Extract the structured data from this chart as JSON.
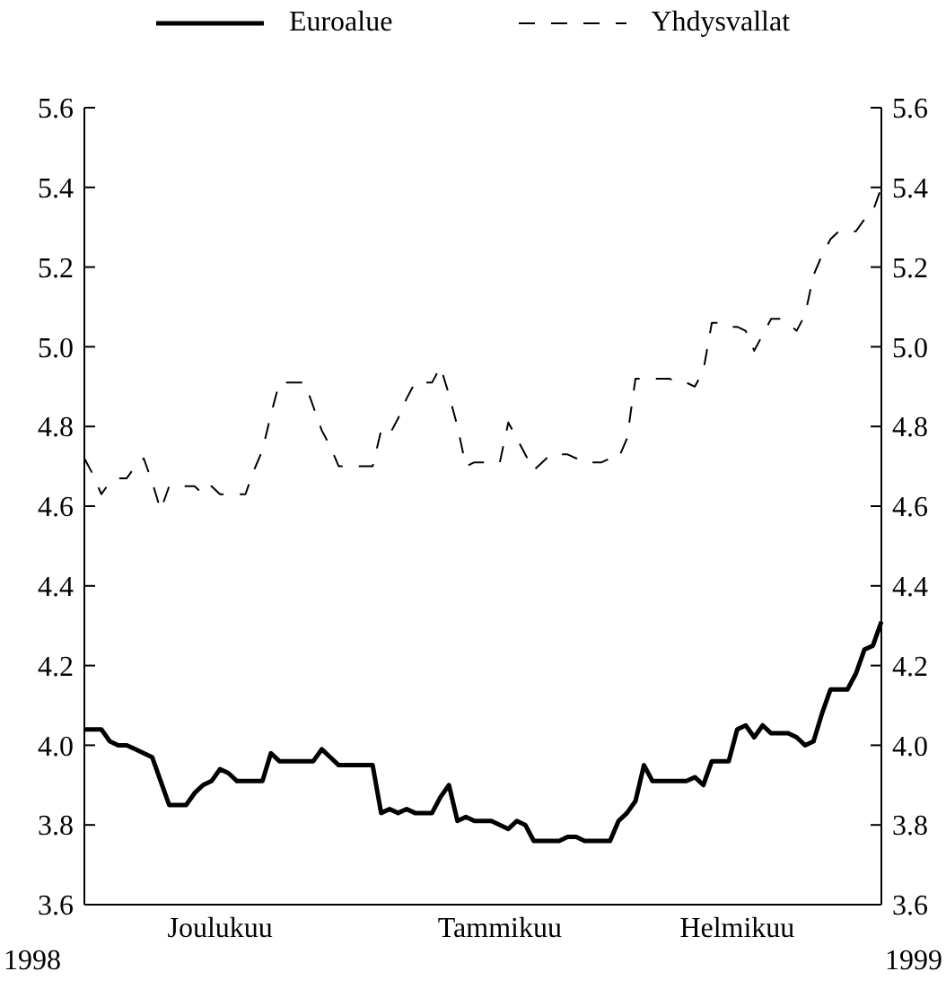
{
  "chart_data": {
    "type": "line",
    "legend": "top",
    "annotations": [
      "1998",
      "1999"
    ],
    "categories": [
      null,
      null,
      null,
      null,
      null,
      null,
      null,
      null,
      null,
      null,
      null,
      null,
      null,
      null,
      null,
      null,
      "Joulukuu",
      null,
      null,
      null,
      null,
      null,
      null,
      null,
      null,
      null,
      null,
      null,
      null,
      null,
      null,
      null,
      null,
      null,
      null,
      null,
      null,
      null,
      null,
      null,
      null,
      null,
      null,
      null,
      null,
      null,
      null,
      null,
      null,
      "Tammikuu",
      null,
      null,
      null,
      null,
      null,
      null,
      null,
      null,
      null,
      null,
      null,
      null,
      null,
      null,
      null,
      null,
      null,
      null,
      null,
      null,
      null,
      null,
      null,
      null,
      null,
      null,
      null,
      "Helmikuu",
      null,
      null,
      null,
      null,
      null,
      null,
      null,
      null,
      null,
      null,
      null,
      null,
      null,
      null,
      null,
      null,
      null
    ],
    "ylim": [
      3.6,
      5.6
    ],
    "yticks": [
      3.6,
      3.8,
      {
        "value": 4.0,
        "label": "4.0"
      },
      4.2,
      4.4,
      4.6,
      4.8,
      {
        "value": 5.0,
        "label": "5.0"
      },
      5.2,
      5.4,
      5.6
    ],
    "y2lim": [
      3.6,
      5.6
    ],
    "y2ticks": [
      3.6,
      3.8,
      {
        "value": 4.0,
        "label": "4.0"
      },
      4.2,
      4.4,
      4.6,
      4.8,
      {
        "value": 5.0,
        "label": "5.0"
      },
      5.2,
      5.4,
      5.6
    ],
    "series": [
      {
        "name": "Euroalue",
        "color": "#000000",
        "line_style": "solid",
        "values": [
          4.04,
          4.04,
          4.04,
          4.01,
          4.0,
          4.0,
          3.99,
          3.98,
          3.97,
          3.91,
          3.85,
          3.85,
          3.85,
          3.88,
          3.9,
          3.91,
          3.94,
          3.93,
          3.91,
          3.91,
          3.91,
          3.91,
          3.98,
          3.96,
          3.96,
          3.96,
          3.96,
          3.96,
          3.99,
          3.97,
          3.95,
          3.95,
          3.95,
          3.95,
          3.95,
          3.83,
          3.84,
          3.83,
          3.84,
          3.83,
          3.83,
          3.83,
          3.87,
          3.9,
          3.81,
          3.82,
          3.81,
          3.81,
          3.81,
          3.8,
          3.79,
          3.81,
          3.8,
          3.76,
          3.76,
          3.76,
          3.76,
          3.77,
          3.77,
          3.76,
          3.76,
          3.76,
          3.76,
          3.81,
          3.83,
          3.86,
          3.95,
          3.91,
          3.91,
          3.91,
          3.91,
          3.91,
          3.92,
          3.9,
          3.96,
          3.96,
          3.96,
          4.04,
          4.05,
          4.02,
          4.05,
          4.03,
          4.03,
          4.03,
          4.02,
          4.0,
          4.01,
          4.08,
          4.14,
          4.14,
          4.14,
          4.18,
          4.24,
          4.25,
          4.31
        ]
      },
      {
        "name": "Yhdysvallat",
        "color": "#000000",
        "line_style": "dashed",
        "values": [
          4.72,
          4.68,
          4.63,
          4.66,
          4.67,
          4.67,
          4.7,
          4.72,
          4.66,
          4.59,
          4.65,
          4.65,
          4.65,
          4.65,
          4.63,
          4.65,
          4.63,
          4.63,
          4.63,
          4.63,
          4.69,
          4.74,
          4.83,
          4.91,
          4.91,
          4.91,
          4.91,
          4.85,
          4.79,
          4.75,
          4.7,
          4.7,
          4.7,
          4.7,
          4.7,
          4.79,
          4.78,
          4.82,
          4.87,
          4.91,
          4.91,
          4.91,
          4.95,
          4.88,
          4.8,
          4.7,
          4.71,
          4.71,
          4.71,
          4.71,
          4.81,
          4.77,
          4.73,
          4.69,
          4.71,
          4.73,
          4.73,
          4.73,
          4.72,
          4.72,
          4.71,
          4.71,
          4.72,
          4.72,
          4.77,
          4.92,
          4.92,
          4.92,
          4.92,
          4.92,
          4.91,
          4.91,
          4.9,
          4.94,
          5.06,
          5.06,
          5.05,
          5.05,
          5.04,
          4.99,
          5.03,
          5.07,
          5.07,
          5.06,
          5.04,
          5.08,
          5.18,
          5.23,
          5.27,
          5.29,
          5.29,
          5.29,
          5.32,
          5.34,
          5.4
        ]
      }
    ]
  }
}
